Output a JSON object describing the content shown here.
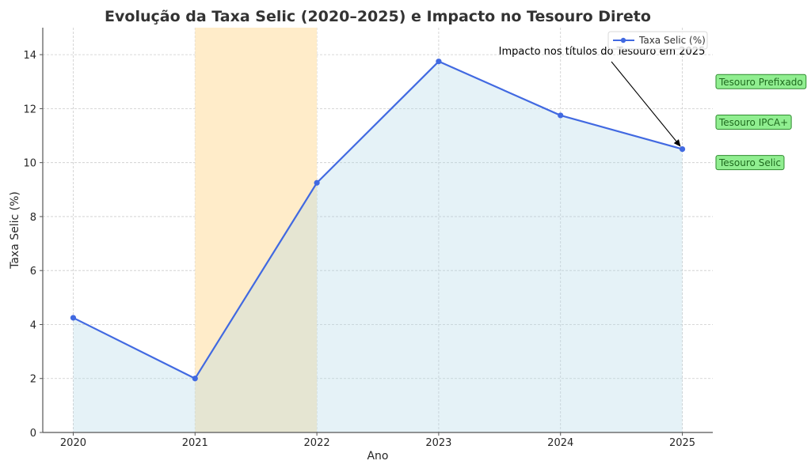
{
  "chart_data": {
    "type": "line",
    "title": "Evolução da Taxa Selic (2020–2025) e Impacto no Tesouro Direto",
    "xlabel": "Ano",
    "ylabel": "Taxa Selic (%)",
    "x": [
      2020,
      2021,
      2022,
      2023,
      2024,
      2025
    ],
    "categories": [
      "2020",
      "2021",
      "2022",
      "2023",
      "2024",
      "2025"
    ],
    "series": [
      {
        "name": "Taxa Selic (%)",
        "values": [
          4.25,
          2.0,
          9.25,
          13.75,
          11.75,
          10.5
        ],
        "color": "#4169e1",
        "marker": "circle",
        "fill": "#add8e6"
      }
    ],
    "ylim": [
      0,
      15
    ],
    "xlim": [
      2019.75,
      2025.25
    ],
    "yticks": [
      0,
      2,
      4,
      6,
      8,
      10,
      12,
      14
    ],
    "xticks": [
      2020,
      2021,
      2022,
      2023,
      2024,
      2025
    ],
    "grid": true,
    "legend_position": "upper right",
    "highlight_span": {
      "x_start": 2021,
      "x_end": 2022,
      "color": "#ffe4b5"
    },
    "annotation": {
      "text": "Impacto nos títulos do Tesouro em 2025",
      "xy": [
        2025,
        10.5
      ],
      "text_xy": [
        2024.45,
        14.0
      ]
    },
    "side_labels": [
      {
        "text": "Tesouro Prefixado",
        "y": 13.0
      },
      {
        "text": "Tesouro IPCA+",
        "y": 11.5
      },
      {
        "text": "Tesouro Selic",
        "y": 10.0
      }
    ]
  },
  "colors": {
    "line": "#4169e1",
    "area_fill": "#e4f1f7",
    "span_fill": "#ffecc9",
    "span_overlap": "#e8e0c4",
    "tag_fill": "#90ee90",
    "tag_border": "#2e8b2e",
    "tag_text": "#1f6b1f"
  }
}
